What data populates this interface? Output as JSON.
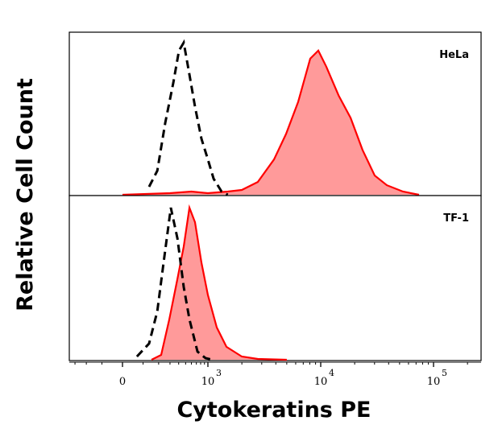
{
  "chart_data": {
    "type": "area",
    "xlabel": "Cytokeratins PE",
    "ylabel": "Relative Cell Count",
    "x_scale": "logicle",
    "x_ticks": [
      {
        "value": 0,
        "base": "0",
        "exp": ""
      },
      {
        "value": 1000,
        "base": "10",
        "exp": "3"
      },
      {
        "value": 10000,
        "base": "10",
        "exp": "4"
      },
      {
        "value": 100000,
        "base": "10",
        "exp": "5"
      }
    ],
    "y_range": [
      0,
      100
    ],
    "grid": false,
    "colors": {
      "sample_line": "#ff0000",
      "sample_fill": "#ff9a9a",
      "control_line": "#000000"
    },
    "panels": [
      {
        "label": "HeLa",
        "series": [
          {
            "style": "filled-red",
            "points": [
              [
                0,
                0
              ],
              [
                300,
                1
              ],
              [
                600,
                2
              ],
              [
                1000,
                1
              ],
              [
                1500,
                2
              ],
              [
                2000,
                3
              ],
              [
                2770,
                8
              ],
              [
                3850,
                22
              ],
              [
                4930,
                38
              ],
              [
                6310,
                58
              ],
              [
                8070,
                85
              ],
              [
                9520,
                90
              ],
              [
                11200,
                80
              ],
              [
                14400,
                62
              ],
              [
                18400,
                48
              ],
              [
                23500,
                28
              ],
              [
                30100,
                12
              ],
              [
                38500,
                6
              ],
              [
                53500,
                2
              ],
              [
                74400,
                0
              ]
            ]
          },
          {
            "style": "dashed-black",
            "points": [
              [
                135,
                5
              ],
              [
                190,
                15
              ],
              [
                255,
                45
              ],
              [
                336,
                70
              ],
              [
                404,
                90
              ],
              [
                471,
                95
              ],
              [
                564,
                75
              ],
              [
                672,
                55
              ],
              [
                820,
                35
              ],
              [
                1000,
                22
              ],
              [
                1123,
                10
              ],
              [
                1323,
                2
              ],
              [
                1500,
                0
              ]
            ]
          }
        ]
      },
      {
        "label": "TF-1",
        "series": [
          {
            "style": "filled-red",
            "points": [
              [
                150,
                0
              ],
              [
                220,
                3
              ],
              [
                293,
                25
              ],
              [
                384,
                50
              ],
              [
                471,
                70
              ],
              [
                564,
                94
              ],
              [
                672,
                85
              ],
              [
                820,
                60
              ],
              [
                1000,
                40
              ],
              [
                1199,
                20
              ],
              [
                1460,
                8
              ],
              [
                2000,
                2
              ],
              [
                2770,
                0.5
              ],
              [
                5000,
                0
              ]
            ]
          },
          {
            "style": "dashed-black",
            "points": [
              [
                68,
                2
              ],
              [
                135,
                10
              ],
              [
                190,
                30
              ],
              [
                240,
                60
              ],
              [
                309,
                94
              ],
              [
                384,
                75
              ],
              [
                471,
                45
              ],
              [
                564,
                25
              ],
              [
                725,
                5
              ],
              [
                930,
                1
              ],
              [
                1100,
                0
              ]
            ]
          }
        ]
      }
    ]
  }
}
